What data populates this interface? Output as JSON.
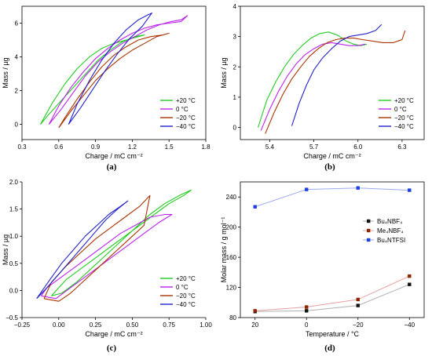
{
  "chart_data": [
    {
      "panel_label": "(a)",
      "type": "line",
      "xlabel": "Charge / mC cm⁻²",
      "ylabel": "Mass / µg",
      "xlim": [
        0.3,
        1.8
      ],
      "ylim": [
        -0.9,
        7.0
      ],
      "xticks": [
        0.3,
        0.6,
        0.9,
        1.2,
        1.5,
        1.8
      ],
      "xtick_labels": [
        "0.3",
        "0.6",
        "0.9",
        "1.2",
        "1.5",
        "1.8"
      ],
      "yticks": [
        0,
        2,
        4,
        6
      ],
      "ytick_labels": [
        "0",
        "2",
        "4",
        "6"
      ],
      "legend_position": "lower-right",
      "series": [
        {
          "name": "+20 °C",
          "color": "#22cc22",
          "x": [
            0.45,
            0.55,
            0.65,
            0.75,
            0.85,
            0.95,
            1.05,
            1.15,
            1.25,
            1.3,
            1.22,
            1.12,
            1.02,
            0.92,
            0.82,
            0.72,
            0.62,
            0.52,
            0.45
          ],
          "y": [
            0.0,
            1.3,
            2.4,
            3.3,
            4.0,
            4.5,
            4.8,
            5.0,
            5.2,
            5.3,
            5.2,
            4.9,
            4.4,
            3.8,
            3.0,
            2.2,
            1.4,
            0.6,
            0.0
          ]
        },
        {
          "name": "0 °C",
          "color": "#bb22ee",
          "x": [
            0.52,
            0.62,
            0.72,
            0.82,
            0.92,
            1.02,
            1.12,
            1.22,
            1.32,
            1.42,
            1.52,
            1.6,
            1.65,
            1.6,
            1.5,
            1.4,
            1.3,
            1.2,
            1.1,
            1.0,
            0.9,
            0.8,
            0.7,
            0.6,
            0.52
          ],
          "y": [
            0.0,
            0.9,
            1.9,
            2.9,
            3.7,
            4.3,
            4.8,
            5.2,
            5.6,
            5.9,
            6.1,
            6.2,
            6.45,
            6.1,
            6.0,
            5.9,
            5.7,
            5.4,
            5.0,
            4.5,
            3.9,
            3.1,
            2.2,
            1.1,
            0.0
          ]
        },
        {
          "name": "−20 °C",
          "color": "#aa3300",
          "x": [
            0.6,
            0.7,
            0.8,
            0.9,
            1.0,
            1.1,
            1.2,
            1.3,
            1.4,
            1.5,
            1.45,
            1.35,
            1.25,
            1.15,
            1.05,
            0.95,
            0.85,
            0.75,
            0.65,
            0.6
          ],
          "y": [
            -0.2,
            0.8,
            1.7,
            2.6,
            3.3,
            3.9,
            4.4,
            4.8,
            5.2,
            5.4,
            5.3,
            5.2,
            5.0,
            4.6,
            4.1,
            3.4,
            2.5,
            1.5,
            0.4,
            -0.2
          ]
        },
        {
          "name": "−40 °C",
          "color": "#2222cc",
          "x": [
            0.68,
            0.78,
            0.88,
            0.98,
            1.08,
            1.18,
            1.28,
            1.36,
            1.33,
            1.25,
            1.15,
            1.05,
            0.95,
            0.85,
            0.75,
            0.68
          ],
          "y": [
            0.0,
            1.0,
            2.1,
            3.2,
            4.2,
            5.1,
            5.8,
            6.6,
            6.5,
            6.2,
            5.6,
            4.8,
            3.8,
            2.6,
            1.2,
            0.0
          ]
        }
      ]
    },
    {
      "panel_label": "(b)",
      "type": "line",
      "xlabel": "Charge / mC cm⁻²",
      "ylabel": "Mass / µg",
      "xlim": [
        5.2,
        6.45
      ],
      "ylim": [
        -0.4,
        4.0
      ],
      "xticks": [
        5.4,
        5.7,
        6.0,
        6.3
      ],
      "xtick_labels": [
        "5.4",
        "5.7",
        "6.0",
        "6.3"
      ],
      "yticks": [
        0,
        1,
        2,
        3,
        4
      ],
      "ytick_labels": [
        "0",
        "1",
        "2",
        "3",
        "4"
      ],
      "legend_position": "lower-right",
      "series": [
        {
          "name": "+20 °C",
          "color": "#22cc22",
          "x": [
            5.32,
            5.38,
            5.44,
            5.5,
            5.56,
            5.62,
            5.68,
            5.74,
            5.8,
            5.86,
            5.92,
            5.97,
            6.02,
            6.06
          ],
          "y": [
            0.0,
            0.9,
            1.5,
            2.0,
            2.4,
            2.7,
            2.95,
            3.1,
            3.15,
            3.05,
            2.85,
            2.75,
            2.7,
            2.75
          ]
        },
        {
          "name": "0 °C",
          "color": "#bb22ee",
          "x": [
            5.34,
            5.4,
            5.46,
            5.52,
            5.58,
            5.64,
            5.7,
            5.76,
            5.82,
            5.88,
            5.94,
            6.0,
            6.05
          ],
          "y": [
            -0.1,
            0.6,
            1.2,
            1.7,
            2.1,
            2.4,
            2.6,
            2.75,
            2.8,
            2.75,
            2.7,
            2.7,
            2.75
          ]
        },
        {
          "name": "−20 °C",
          "color": "#aa3300",
          "x": [
            5.37,
            5.43,
            5.49,
            5.55,
            5.61,
            5.67,
            5.73,
            5.79,
            5.85,
            5.91,
            5.97,
            6.03,
            6.1,
            6.17,
            6.24,
            6.3,
            6.32
          ],
          "y": [
            -0.2,
            0.5,
            1.1,
            1.6,
            2.0,
            2.35,
            2.6,
            2.8,
            2.9,
            2.95,
            2.95,
            2.9,
            2.85,
            2.8,
            2.8,
            2.9,
            3.2
          ]
        },
        {
          "name": "−40 °C",
          "color": "#2222cc",
          "x": [
            5.55,
            5.6,
            5.65,
            5.7,
            5.76,
            5.82,
            5.88,
            5.94,
            6.0,
            6.06,
            6.12,
            6.16
          ],
          "y": [
            0.05,
            0.8,
            1.4,
            1.9,
            2.3,
            2.6,
            2.85,
            3.0,
            3.05,
            3.1,
            3.2,
            3.4
          ]
        }
      ]
    },
    {
      "panel_label": "(c)",
      "type": "line",
      "xlabel": "Charge / mC cm⁻²",
      "ylabel": "Mass / µg",
      "xlim": [
        -0.25,
        1.0
      ],
      "ylim": [
        -0.5,
        2.0
      ],
      "xticks": [
        -0.25,
        0.0,
        0.25,
        0.5,
        0.75,
        1.0
      ],
      "xtick_labels": [
        "−0.25",
        "0.00",
        "0.25",
        "0.50",
        "0.75",
        "1.00"
      ],
      "yticks": [
        -0.5,
        0.0,
        0.5,
        1.0,
        1.5,
        2.0
      ],
      "ytick_labels": [
        "−0.5",
        "0.0",
        "0.5",
        "1.0",
        "1.5",
        "2.0"
      ],
      "legend_position": "lower-right",
      "series": [
        {
          "name": "+20 °C",
          "color": "#22cc22",
          "x": [
            -0.05,
            0.05,
            0.15,
            0.25,
            0.35,
            0.45,
            0.55,
            0.65,
            0.75,
            0.85,
            0.9,
            0.82,
            0.72,
            0.62,
            0.52,
            0.42,
            0.32,
            0.22,
            0.12,
            0.02,
            -0.05
          ],
          "y": [
            -0.1,
            0.2,
            0.4,
            0.6,
            0.8,
            1.0,
            1.2,
            1.4,
            1.6,
            1.75,
            1.85,
            1.75,
            1.6,
            1.4,
            1.15,
            0.9,
            0.65,
            0.4,
            0.15,
            -0.05,
            -0.1
          ]
        },
        {
          "name": "0 °C",
          "color": "#bb22ee",
          "x": [
            -0.12,
            -0.02,
            0.08,
            0.18,
            0.28,
            0.38,
            0.48,
            0.58,
            0.68,
            0.77,
            0.72,
            0.62,
            0.52,
            0.42,
            0.32,
            0.22,
            0.12,
            0.02,
            -0.08,
            -0.12
          ],
          "y": [
            -0.1,
            -0.15,
            0.05,
            0.25,
            0.45,
            0.65,
            0.85,
            1.05,
            1.25,
            1.4,
            1.4,
            1.35,
            1.2,
            1.05,
            0.85,
            0.65,
            0.45,
            0.25,
            0.05,
            -0.1
          ]
        },
        {
          "name": "−20 °C",
          "color": "#aa3300",
          "x": [
            -0.1,
            0.0,
            0.08,
            0.18,
            0.28,
            0.38,
            0.48,
            0.58,
            0.62,
            0.55,
            0.45,
            0.35,
            0.25,
            0.15,
            0.05,
            -0.05,
            -0.1
          ],
          "y": [
            -0.15,
            -0.2,
            -0.05,
            0.2,
            0.45,
            0.7,
            0.95,
            1.2,
            1.75,
            1.55,
            1.35,
            1.15,
            0.95,
            0.7,
            0.45,
            0.15,
            -0.15
          ]
        },
        {
          "name": "−40 °C",
          "color": "#2222cc",
          "x": [
            -0.15,
            -0.08,
            0.0,
            0.08,
            0.16,
            0.24,
            0.32,
            0.4,
            0.47,
            0.42,
            0.34,
            0.26,
            0.18,
            0.1,
            0.02,
            -0.06,
            -0.15
          ],
          "y": [
            -0.15,
            0.05,
            0.3,
            0.55,
            0.8,
            1.05,
            1.3,
            1.5,
            1.65,
            1.55,
            1.4,
            1.2,
            1.0,
            0.75,
            0.5,
            0.2,
            -0.15
          ]
        }
      ]
    },
    {
      "panel_label": "(d)",
      "type": "line",
      "xlabel": "Temperature / °C",
      "ylabel": "Molar mass / g mol⁻¹",
      "categories": [
        "20",
        "0",
        "−20",
        "−40"
      ],
      "ylim": [
        80,
        260
      ],
      "yticks": [
        80,
        120,
        160,
        200,
        240
      ],
      "ytick_labels": [
        "80",
        "120",
        "160",
        "200",
        "240"
      ],
      "legend_position": "right",
      "series": [
        {
          "name": "Bu₄NBF₄",
          "color": "#111111",
          "line_color": "#b0b0b0",
          "values": [
            88,
            89,
            96,
            124
          ]
        },
        {
          "name": "Me₄NBF₄",
          "color": "#8b2500",
          "line_color": "#e8a0a0",
          "values": [
            89,
            94,
            104,
            135
          ]
        },
        {
          "name": "Bu₄NTFSI",
          "color": "#1f3fe0",
          "line_color": "#9aaaf0",
          "values": [
            227,
            250,
            252,
            249
          ]
        }
      ]
    }
  ]
}
